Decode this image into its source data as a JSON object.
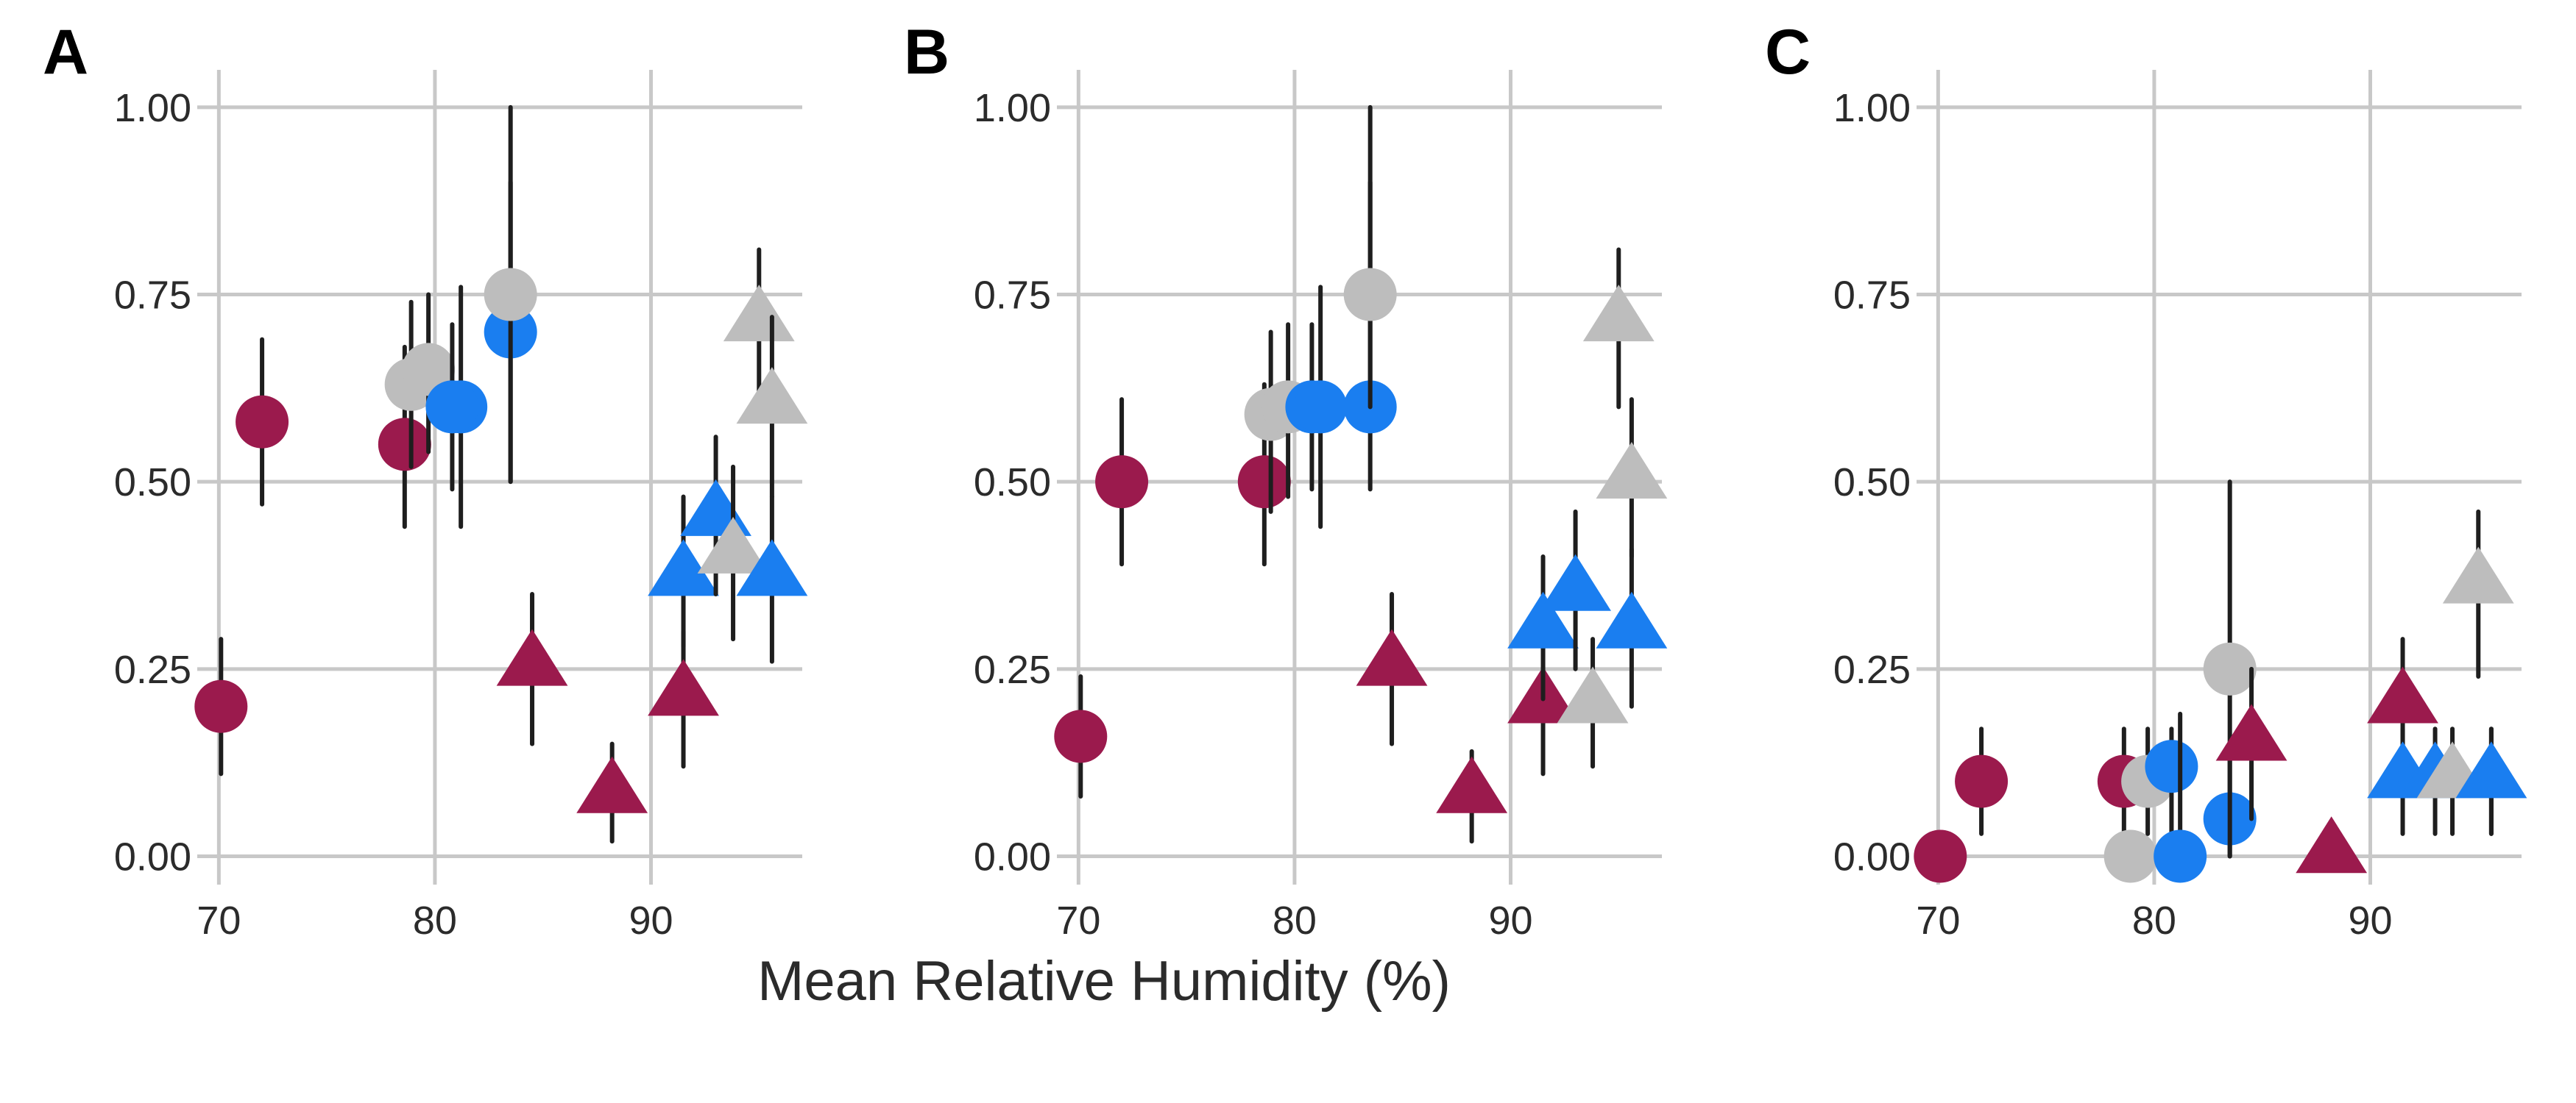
{
  "xlabel": "Mean Relative Humidity (%)",
  "colors": {
    "crimson": "#9b1a4d",
    "blue": "#1a7ef0",
    "gray": "#bdbdbd",
    "errorbar": "#1e1e1e",
    "grid": "#c8c8c8"
  },
  "chart_data": [
    {
      "type": "scatter",
      "panel": "A",
      "xlim": [
        69,
        97
      ],
      "ylim": [
        -0.03,
        1.05
      ],
      "xticks": [
        "70",
        "80",
        "90"
      ],
      "yticks": [
        "0.00",
        "0.25",
        "0.50",
        "0.75",
        "1.00"
      ],
      "points": [
        {
          "x": 70.1,
          "y": 0.2,
          "lo": 0.11,
          "hi": 0.29,
          "color": "crimson",
          "shape": "circle"
        },
        {
          "x": 72.0,
          "y": 0.58,
          "lo": 0.47,
          "hi": 0.69,
          "color": "crimson",
          "shape": "circle"
        },
        {
          "x": 78.6,
          "y": 0.55,
          "lo": 0.44,
          "hi": 0.68,
          "color": "crimson",
          "shape": "circle"
        },
        {
          "x": 78.9,
          "y": 0.63,
          "lo": 0.52,
          "hi": 0.74,
          "color": "gray",
          "shape": "circle"
        },
        {
          "x": 79.7,
          "y": 0.65,
          "lo": 0.54,
          "hi": 0.75,
          "color": "gray",
          "shape": "circle"
        },
        {
          "x": 81.2,
          "y": 0.6,
          "lo": 0.44,
          "hi": 0.76,
          "color": "blue",
          "shape": "circle"
        },
        {
          "x": 80.8,
          "y": 0.6,
          "lo": 0.49,
          "hi": 0.71,
          "color": "blue",
          "shape": "circle"
        },
        {
          "x": 83.5,
          "y": 0.7,
          "lo": 0.5,
          "hi": 0.9,
          "color": "blue",
          "shape": "circle"
        },
        {
          "x": 83.5,
          "y": 0.75,
          "lo": 0.5,
          "hi": 1.0,
          "color": "gray",
          "shape": "circle"
        },
        {
          "x": 84.5,
          "y": 0.26,
          "lo": 0.15,
          "hi": 0.35,
          "color": "crimson",
          "shape": "triangle"
        },
        {
          "x": 88.2,
          "y": 0.09,
          "lo": 0.02,
          "hi": 0.15,
          "color": "crimson",
          "shape": "triangle"
        },
        {
          "x": 91.5,
          "y": 0.22,
          "lo": 0.12,
          "hi": 0.3,
          "color": "crimson",
          "shape": "triangle"
        },
        {
          "x": 91.5,
          "y": 0.38,
          "lo": 0.28,
          "hi": 0.48,
          "color": "blue",
          "shape": "triangle"
        },
        {
          "x": 93.0,
          "y": 0.46,
          "lo": 0.35,
          "hi": 0.56,
          "color": "blue",
          "shape": "triangle"
        },
        {
          "x": 93.8,
          "y": 0.41,
          "lo": 0.29,
          "hi": 0.52,
          "color": "gray",
          "shape": "triangle"
        },
        {
          "x": 95.0,
          "y": 0.72,
          "lo": 0.62,
          "hi": 0.81,
          "color": "gray",
          "shape": "triangle"
        },
        {
          "x": 95.6,
          "y": 0.61,
          "lo": 0.48,
          "hi": 0.72,
          "color": "gray",
          "shape": "triangle"
        },
        {
          "x": 95.6,
          "y": 0.38,
          "lo": 0.26,
          "hi": 0.48,
          "color": "blue",
          "shape": "triangle"
        }
      ]
    },
    {
      "type": "scatter",
      "panel": "B",
      "xlim": [
        69,
        97
      ],
      "ylim": [
        -0.03,
        1.05
      ],
      "xticks": [
        "70",
        "80",
        "90"
      ],
      "yticks": [
        "0.00",
        "0.25",
        "0.50",
        "0.75",
        "1.00"
      ],
      "points": [
        {
          "x": 70.1,
          "y": 0.16,
          "lo": 0.08,
          "hi": 0.24,
          "color": "crimson",
          "shape": "circle"
        },
        {
          "x": 72.0,
          "y": 0.5,
          "lo": 0.39,
          "hi": 0.61,
          "color": "crimson",
          "shape": "circle"
        },
        {
          "x": 78.6,
          "y": 0.5,
          "lo": 0.39,
          "hi": 0.63,
          "color": "crimson",
          "shape": "circle"
        },
        {
          "x": 78.9,
          "y": 0.59,
          "lo": 0.46,
          "hi": 0.7,
          "color": "gray",
          "shape": "circle"
        },
        {
          "x": 79.7,
          "y": 0.6,
          "lo": 0.48,
          "hi": 0.71,
          "color": "gray",
          "shape": "circle"
        },
        {
          "x": 80.8,
          "y": 0.6,
          "lo": 0.49,
          "hi": 0.71,
          "color": "blue",
          "shape": "circle"
        },
        {
          "x": 81.2,
          "y": 0.6,
          "lo": 0.44,
          "hi": 0.76,
          "color": "blue",
          "shape": "circle"
        },
        {
          "x": 83.5,
          "y": 0.6,
          "lo": 0.49,
          "hi": 1.0,
          "color": "blue",
          "shape": "circle"
        },
        {
          "x": 83.5,
          "y": 0.75,
          "lo": 0.6,
          "hi": 0.9,
          "color": "gray",
          "shape": "circle"
        },
        {
          "x": 84.5,
          "y": 0.26,
          "lo": 0.15,
          "hi": 0.35,
          "color": "crimson",
          "shape": "triangle"
        },
        {
          "x": 88.2,
          "y": 0.09,
          "lo": 0.02,
          "hi": 0.14,
          "color": "crimson",
          "shape": "triangle"
        },
        {
          "x": 91.5,
          "y": 0.21,
          "lo": 0.11,
          "hi": 0.3,
          "color": "crimson",
          "shape": "triangle"
        },
        {
          "x": 91.5,
          "y": 0.31,
          "lo": 0.21,
          "hi": 0.4,
          "color": "blue",
          "shape": "triangle"
        },
        {
          "x": 93.0,
          "y": 0.36,
          "lo": 0.25,
          "hi": 0.46,
          "color": "blue",
          "shape": "triangle"
        },
        {
          "x": 93.8,
          "y": 0.21,
          "lo": 0.12,
          "hi": 0.29,
          "color": "gray",
          "shape": "triangle"
        },
        {
          "x": 95.0,
          "y": 0.72,
          "lo": 0.6,
          "hi": 0.81,
          "color": "gray",
          "shape": "triangle"
        },
        {
          "x": 95.6,
          "y": 0.51,
          "lo": 0.4,
          "hi": 0.61,
          "color": "gray",
          "shape": "triangle"
        },
        {
          "x": 95.6,
          "y": 0.31,
          "lo": 0.2,
          "hi": 0.41,
          "color": "blue",
          "shape": "triangle"
        }
      ]
    },
    {
      "type": "scatter",
      "panel": "C",
      "xlim": [
        69,
        97
      ],
      "ylim": [
        -0.03,
        1.05
      ],
      "xticks": [
        "70",
        "80",
        "90"
      ],
      "yticks": [
        "0.00",
        "0.25",
        "0.50",
        "0.75",
        "1.00"
      ],
      "points": [
        {
          "x": 70.1,
          "y": 0.0,
          "lo": 0.0,
          "hi": 0.0,
          "color": "crimson",
          "shape": "circle"
        },
        {
          "x": 72.0,
          "y": 0.1,
          "lo": 0.03,
          "hi": 0.17,
          "color": "crimson",
          "shape": "circle"
        },
        {
          "x": 78.6,
          "y": 0.1,
          "lo": 0.03,
          "hi": 0.17,
          "color": "crimson",
          "shape": "circle"
        },
        {
          "x": 78.9,
          "y": 0.0,
          "lo": 0.0,
          "hi": 0.0,
          "color": "gray",
          "shape": "circle"
        },
        {
          "x": 79.7,
          "y": 0.1,
          "lo": 0.03,
          "hi": 0.17,
          "color": "gray",
          "shape": "circle"
        },
        {
          "x": 80.8,
          "y": 0.12,
          "lo": 0.03,
          "hi": 0.17,
          "color": "blue",
          "shape": "circle"
        },
        {
          "x": 81.2,
          "y": 0.0,
          "lo": 0.0,
          "hi": 0.19,
          "color": "blue",
          "shape": "circle"
        },
        {
          "x": 83.5,
          "y": 0.05,
          "lo": 0.0,
          "hi": 0.15,
          "color": "blue",
          "shape": "circle"
        },
        {
          "x": 83.5,
          "y": 0.25,
          "lo": 0.0,
          "hi": 0.5,
          "color": "gray",
          "shape": "circle"
        },
        {
          "x": 84.5,
          "y": 0.16,
          "lo": 0.05,
          "hi": 0.25,
          "color": "crimson",
          "shape": "triangle"
        },
        {
          "x": 88.2,
          "y": 0.01,
          "lo": 0.0,
          "hi": 0.0,
          "color": "crimson",
          "shape": "triangle"
        },
        {
          "x": 91.5,
          "y": 0.21,
          "lo": 0.12,
          "hi": 0.29,
          "color": "crimson",
          "shape": "triangle"
        },
        {
          "x": 91.5,
          "y": 0.11,
          "lo": 0.03,
          "hi": 0.17,
          "color": "blue",
          "shape": "triangle"
        },
        {
          "x": 93.0,
          "y": 0.11,
          "lo": 0.03,
          "hi": 0.17,
          "color": "blue",
          "shape": "triangle"
        },
        {
          "x": 93.8,
          "y": 0.11,
          "lo": 0.03,
          "hi": 0.17,
          "color": "gray",
          "shape": "triangle"
        },
        {
          "x": 95.0,
          "y": 0.37,
          "lo": 0.24,
          "hi": 0.46,
          "color": "gray",
          "shape": "triangle"
        },
        {
          "x": 95.6,
          "y": 0.11,
          "lo": 0.03,
          "hi": 0.17,
          "color": "gray",
          "shape": "triangle"
        },
        {
          "x": 95.6,
          "y": 0.11,
          "lo": 0.03,
          "hi": 0.17,
          "color": "blue",
          "shape": "triangle"
        }
      ]
    }
  ]
}
